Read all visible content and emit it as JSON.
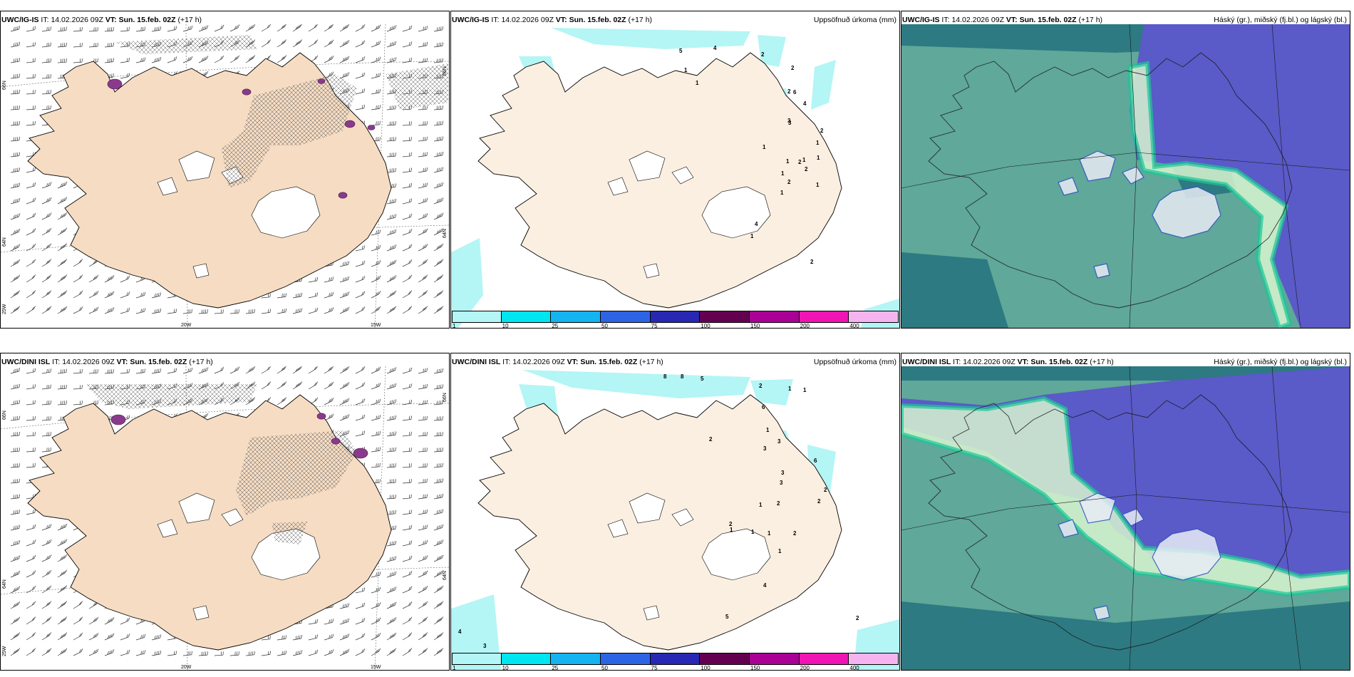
{
  "rows": [
    {
      "model": "UWC/IG-IS",
      "it_label": "IT:",
      "it_value": "14.02.2026 09Z",
      "vt_label": "VT:",
      "vt_value": "Sun. 15.feb. 02Z",
      "lead": "(+17 h)",
      "wind_axis": {
        "lat_left_upper": "66N",
        "lat_left_lower": "64N",
        "lat_left_bottom": "25W",
        "lat_right_upper": "66N",
        "lat_right_lower": "64N",
        "lon_a": "20W",
        "lon_b": "15W"
      },
      "precip_labels": [
        "5",
        "4",
        "2",
        "1",
        "1",
        "2",
        "2",
        "6",
        "4",
        "3",
        "3",
        "2",
        "1",
        "1",
        "1",
        "1",
        "1",
        "2",
        "1",
        "2",
        "1",
        "2",
        "1",
        "4",
        "1",
        "2"
      ]
    },
    {
      "model": "UWC/DINI ISL",
      "it_label": "IT:",
      "it_value": "14.02.2026 09Z",
      "vt_label": "VT:",
      "vt_value": "Sun. 15.feb. 02Z",
      "lead": "(+17 h)",
      "wind_axis": {
        "lat_left_upper": "66N",
        "lat_left_lower": "64N",
        "lat_left_bottom": "25W",
        "lat_right_upper": "66N",
        "lat_right_lower": "64N",
        "lon_a": "20W",
        "lon_b": "15W"
      },
      "precip_labels": [
        "8",
        "8",
        "5",
        "2",
        "1",
        "1",
        "6",
        "1",
        "2",
        "3",
        "3",
        "3",
        "6",
        "3",
        "2",
        "2",
        "2",
        "1",
        "2",
        "1",
        "1",
        "1",
        "2",
        "1",
        "4",
        "5",
        "4",
        "3",
        "2"
      ]
    }
  ],
  "precip_title": "Uppsöfnuð úrkoma (mm)",
  "cloud_title": "Háský (gr.), miðský (fj.bl.) og lágský (bl.)",
  "colorbar": {
    "ticks": [
      "1",
      "10",
      "25",
      "50",
      "75",
      "100",
      "150",
      "200",
      "400"
    ],
    "colors": [
      "#b4f5f5",
      "#00e6f0",
      "#14b4f0",
      "#2d64e6",
      "#2828b4",
      "#640050",
      "#aa0096",
      "#f014b4",
      "#f5b4f0"
    ]
  },
  "colors": {
    "land": "#f5dcc3",
    "land_precip": "#fbefe1",
    "cloud_low": "#5fa89a",
    "cloud_high": "#5a5ac8",
    "cloud_mid": "#2d7a82",
    "hatch": "#000000"
  }
}
